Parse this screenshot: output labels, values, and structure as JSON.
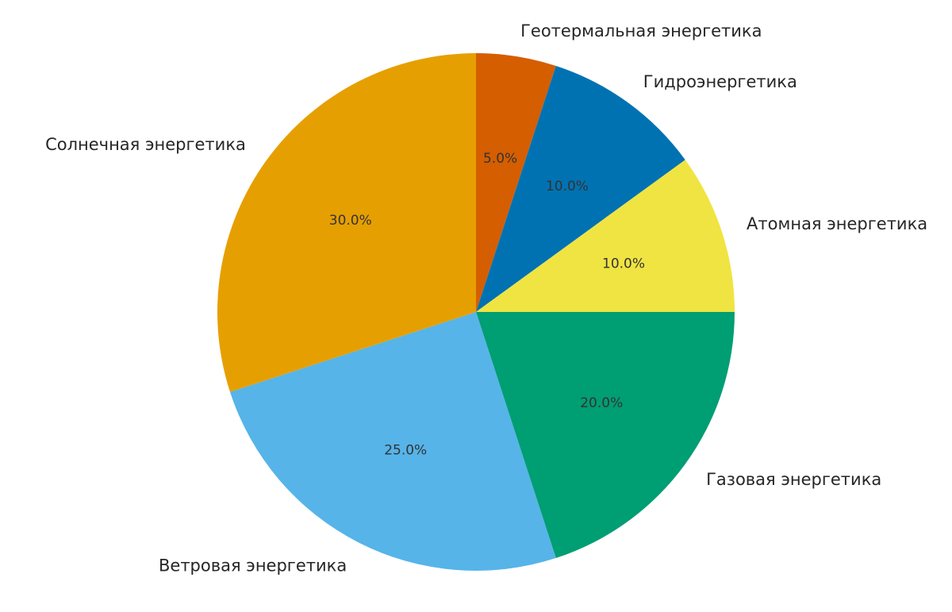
{
  "chart_data": {
    "type": "pie",
    "start_angle_deg": 90,
    "direction": "clockwise",
    "slices": [
      {
        "label": "Геотермальная энергетика",
        "value": 5.0,
        "pct_label": "5.0%",
        "color": "#d55e00"
      },
      {
        "label": "Гидроэнергетика",
        "value": 10.0,
        "pct_label": "10.0%",
        "color": "#0072b2"
      },
      {
        "label": "Атомная энергетика",
        "value": 10.0,
        "pct_label": "10.0%",
        "color": "#f0e442"
      },
      {
        "label": "Газовая энергетика",
        "value": 20.0,
        "pct_label": "20.0%",
        "color": "#009e73"
      },
      {
        "label": "Ветровая энергетика",
        "value": 25.0,
        "pct_label": "25.0%",
        "color": "#56b4e9"
      },
      {
        "label": "Солнечная энергетика",
        "value": 30.0,
        "pct_label": "30.0%",
        "color": "#e69f00"
      }
    ]
  }
}
